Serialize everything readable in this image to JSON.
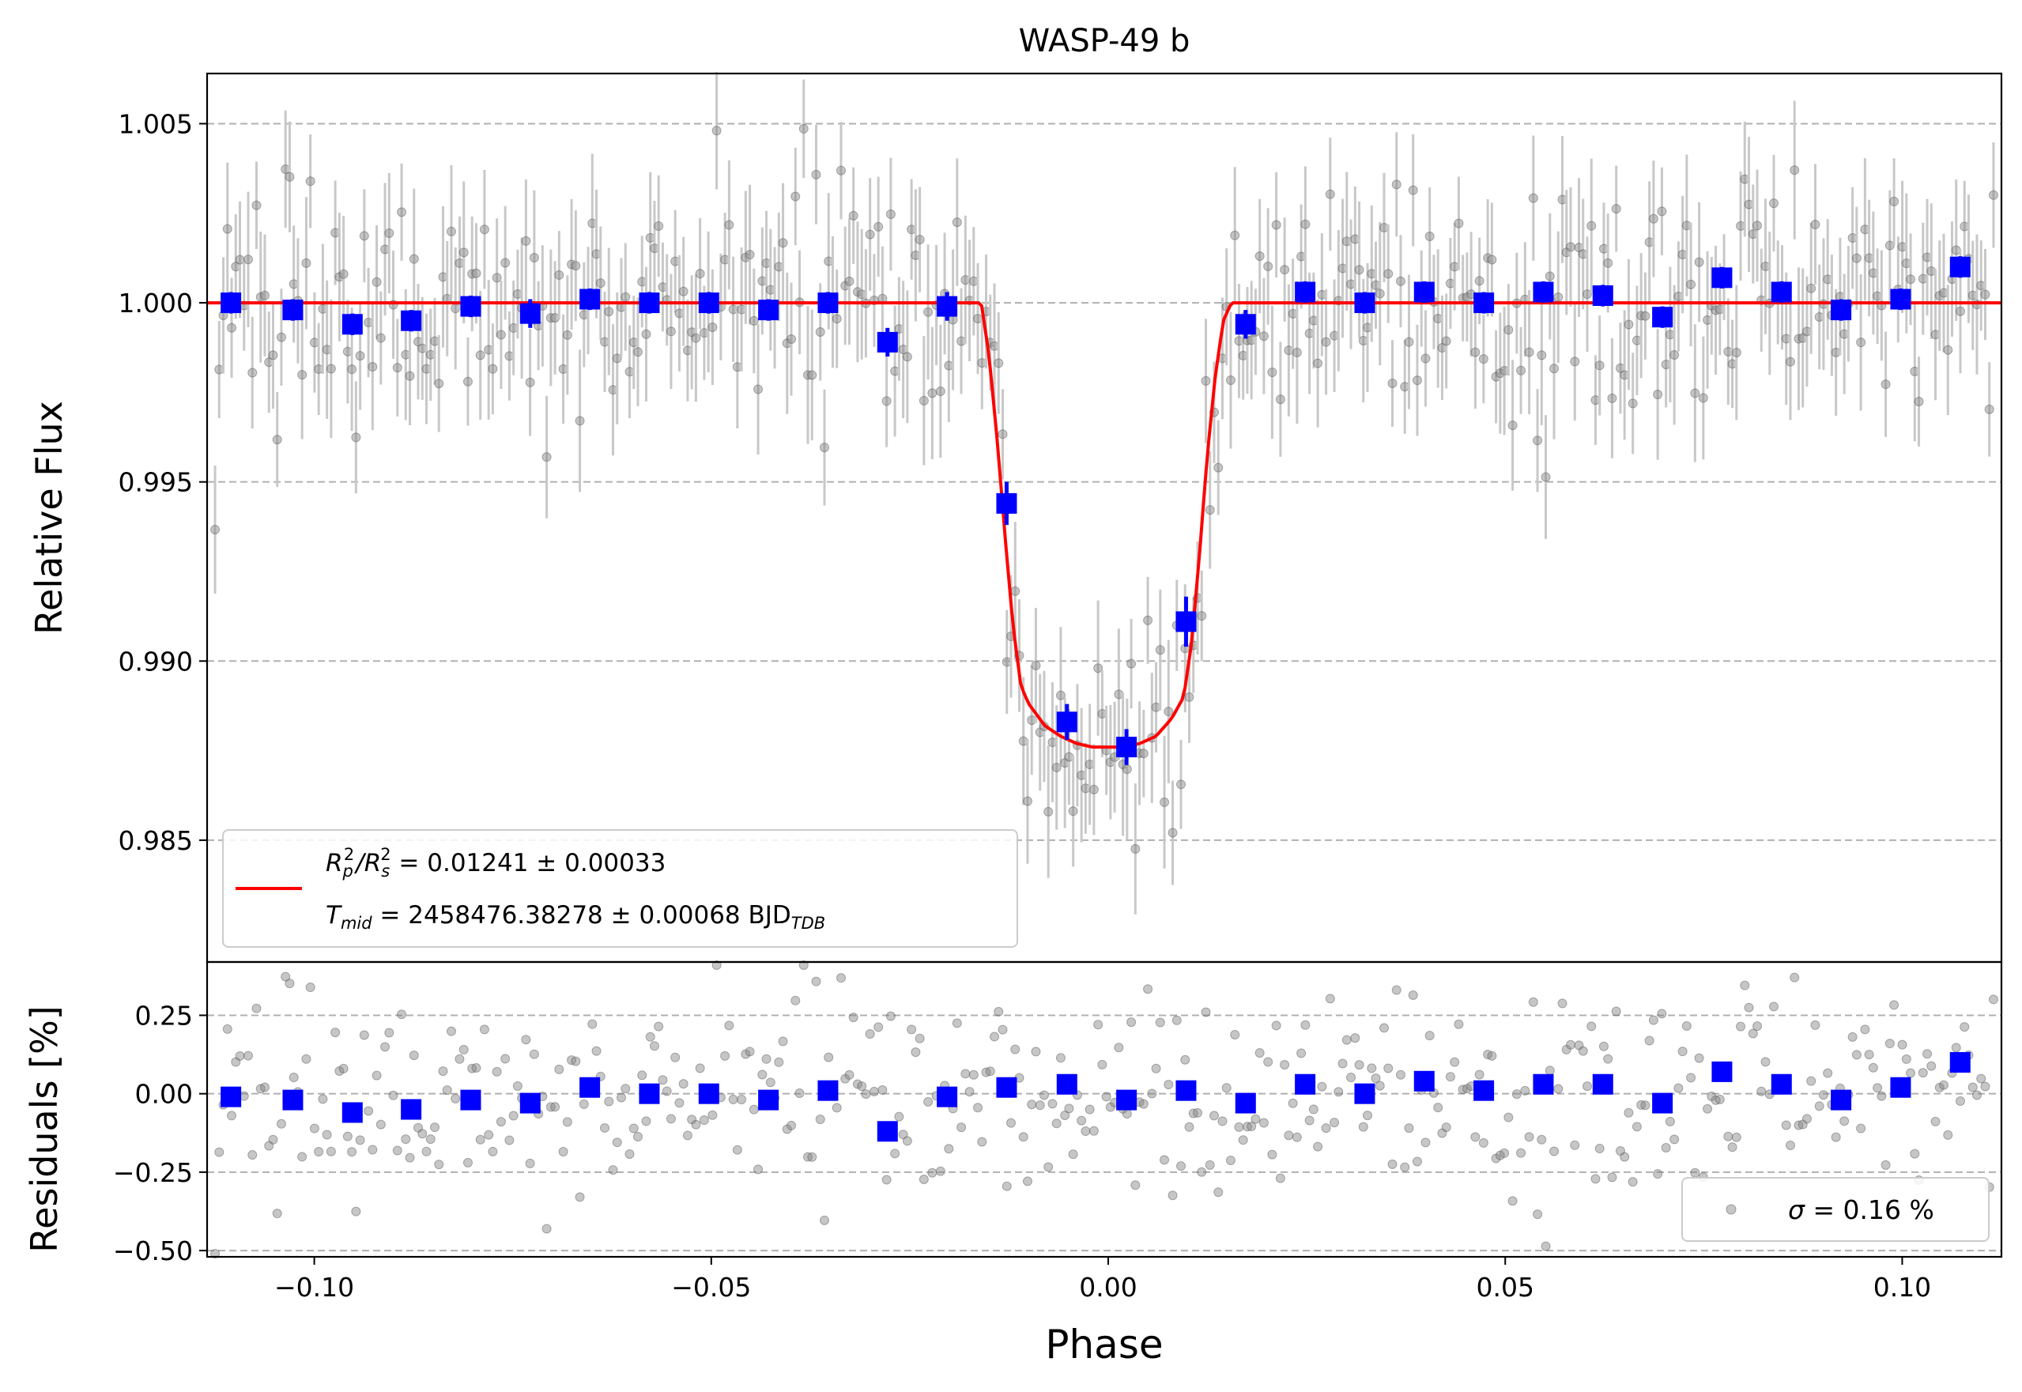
{
  "chart_data": [
    {
      "type": "scatter",
      "title": "WASP-49 b",
      "xlabel": "",
      "ylabel": "Relative Flux",
      "xlim": [
        -0.1135,
        0.1125
      ],
      "ylim": [
        0.9816,
        1.0064
      ],
      "yticks": [
        0.985,
        0.99,
        0.995,
        1.0,
        1.005
      ],
      "ytick_labels": [
        "0.985",
        "0.990",
        "0.995",
        "1.000",
        "1.005"
      ],
      "grid": "horizontal dashed",
      "colors": {
        "raw": "#808080",
        "binned": "#0000ff",
        "model": "#ff0000"
      },
      "legend": {
        "placement": "lower-left",
        "entries": [
          {
            "rp_pre": "R",
            "rp_sub": "p",
            "rp_sup": "2",
            "rs_pre": "/R",
            "rs_sub": "s",
            "rs_sup": "2",
            "value": " = 0.01241 ± 0.00033"
          },
          {
            "t_pre": "T",
            "t_sub": "mid",
            "value": " = 2458476.38278 ± 0.00068 BJD",
            "unit_sub": "TDB"
          }
        ]
      },
      "binned": {
        "x": [
          -0.1105,
          -0.1027,
          -0.0952,
          -0.0878,
          -0.0803,
          -0.0728,
          -0.0653,
          -0.0578,
          -0.0503,
          -0.0428,
          -0.0353,
          -0.0278,
          -0.0203,
          -0.0128,
          -0.0052,
          0.0023,
          0.0098,
          0.0173,
          0.0248,
          0.0323,
          0.0398,
          0.0473,
          0.0548,
          0.0623,
          0.0698,
          0.0773,
          0.0848,
          0.0923,
          0.0998,
          0.1073
        ],
        "y": [
          1.0,
          0.9998,
          0.9994,
          0.9995,
          0.9999,
          0.9997,
          1.0001,
          1.0,
          1.0,
          0.9998,
          1.0,
          0.9989,
          0.9999,
          0.9944,
          0.9883,
          0.9876,
          0.9911,
          0.9994,
          1.0003,
          1.0,
          1.0003,
          1.0,
          1.0003,
          1.0002,
          0.9996,
          1.0007,
          1.0003,
          0.9998,
          1.0001,
          1.001
        ],
        "err": [
          0.0003,
          0.0003,
          0.0003,
          0.0003,
          0.0003,
          0.0004,
          0.0003,
          0.0003,
          0.0003,
          0.0003,
          0.0003,
          0.0004,
          0.0004,
          0.0006,
          0.0005,
          0.0005,
          0.0007,
          0.0004,
          0.0003,
          0.0003,
          0.0003,
          0.0003,
          0.0003,
          0.0003,
          0.0003,
          0.0003,
          0.0003,
          0.0003,
          0.0003,
          0.0003
        ]
      },
      "model": {
        "depth": 0.01241,
        "t_mid_phase": 0.0,
        "x": [
          -0.1135,
          -0.016,
          -0.015,
          -0.014,
          -0.013,
          -0.012,
          -0.011,
          -0.01,
          -0.008,
          -0.006,
          -0.004,
          -0.002,
          0.0,
          0.002,
          0.004,
          0.006,
          0.008,
          0.0095,
          0.0105,
          0.0115,
          0.0125,
          0.0135,
          0.0145,
          0.0155,
          0.1125
        ],
        "y": [
          1.0,
          1.0,
          0.9985,
          0.9962,
          0.9935,
          0.991,
          0.9893,
          0.9888,
          0.9882,
          0.9879,
          0.9877,
          0.9876,
          0.9876,
          0.9876,
          0.9877,
          0.9879,
          0.9884,
          0.989,
          0.9905,
          0.993,
          0.9958,
          0.998,
          0.9995,
          1.0,
          1.0
        ]
      },
      "raw_scatter_sigma": 0.0016
    },
    {
      "type": "scatter",
      "title": "",
      "xlabel": "Phase",
      "ylabel": "Residuals [%]",
      "xlim": [
        -0.1135,
        0.1125
      ],
      "ylim": [
        -0.52,
        0.42
      ],
      "xticks": [
        -0.1,
        -0.05,
        0.0,
        0.05,
        0.1
      ],
      "xtick_labels": [
        "−0.10",
        "−0.05",
        "0.00",
        "0.05",
        "0.10"
      ],
      "yticks": [
        -0.5,
        -0.25,
        0.0,
        0.25
      ],
      "ytick_labels": [
        "−0.50",
        "−0.25",
        "0.00",
        "0.25"
      ],
      "grid": "horizontal dashed",
      "legend": {
        "placement": "lower-right",
        "sigma_symbol": "σ",
        "text": " = 0.16 %"
      },
      "binned": {
        "x": [
          -0.1105,
          -0.1027,
          -0.0952,
          -0.0878,
          -0.0803,
          -0.0728,
          -0.0653,
          -0.0578,
          -0.0503,
          -0.0428,
          -0.0353,
          -0.0278,
          -0.0203,
          -0.0128,
          -0.0052,
          0.0023,
          0.0098,
          0.0173,
          0.0248,
          0.0323,
          0.0398,
          0.0473,
          0.0548,
          0.0623,
          0.0698,
          0.0773,
          0.0848,
          0.0923,
          0.0998,
          0.1073
        ],
        "y": [
          -0.01,
          -0.02,
          -0.06,
          -0.05,
          -0.02,
          -0.03,
          0.02,
          0.0,
          0.0,
          -0.02,
          0.01,
          -0.12,
          -0.01,
          0.02,
          0.03,
          -0.02,
          0.01,
          -0.03,
          0.03,
          0.0,
          0.04,
          0.01,
          0.03,
          0.03,
          -0.03,
          0.07,
          0.03,
          -0.02,
          0.02,
          0.1
        ]
      },
      "raw_sigma_percent": 0.16
    }
  ]
}
